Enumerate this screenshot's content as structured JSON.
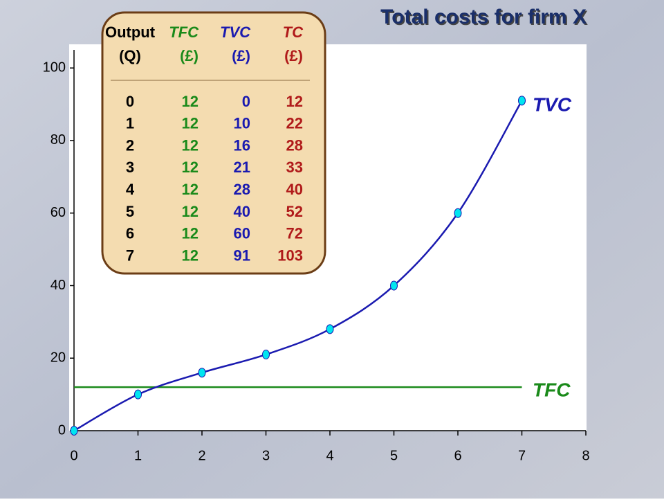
{
  "chart_data": {
    "type": "line",
    "title": "Total costs for firm X",
    "x": [
      0,
      1,
      2,
      3,
      4,
      5,
      6,
      7
    ],
    "series": [
      {
        "name": "TVC",
        "color": "#1a1ab0",
        "marker_color": "#00e5f0",
        "markers": true,
        "values": [
          0,
          10,
          16,
          21,
          28,
          40,
          60,
          91
        ]
      },
      {
        "name": "TFC",
        "color": "#1a8a1a",
        "markers": false,
        "values": [
          12,
          12,
          12,
          12,
          12,
          12,
          12,
          12
        ]
      }
    ],
    "xlim": [
      0,
      8
    ],
    "ylim": [
      0,
      105
    ],
    "xticks": [
      0,
      1,
      2,
      3,
      4,
      5,
      6,
      7,
      8
    ],
    "yticks": [
      0,
      20,
      40,
      60,
      80,
      100
    ],
    "grid": false
  },
  "table": {
    "header": [
      [
        "Output",
        "(Q)"
      ],
      [
        "TFC",
        "(£)"
      ],
      [
        "TVC",
        "(£)"
      ],
      [
        "TC",
        "(£)"
      ]
    ],
    "colors": [
      "#000000",
      "#1a8a1a",
      "#1a1ab0",
      "#b01a1a"
    ],
    "rows": [
      [
        0,
        12,
        0,
        12
      ],
      [
        1,
        12,
        10,
        22
      ],
      [
        2,
        12,
        16,
        28
      ],
      [
        3,
        12,
        21,
        33
      ],
      [
        4,
        12,
        28,
        40
      ],
      [
        5,
        12,
        40,
        52
      ],
      [
        6,
        12,
        60,
        72
      ],
      [
        7,
        12,
        91,
        103
      ]
    ]
  }
}
